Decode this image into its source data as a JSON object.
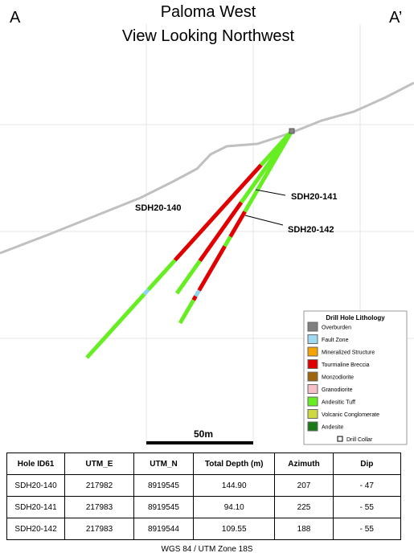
{
  "header": {
    "title_lines": [
      "Paloma West",
      "View Looking Northwest"
    ],
    "left_label": "A",
    "right_label": "A’"
  },
  "holes": [
    {
      "label": "SDH20-140"
    },
    {
      "label": "SDH20-141"
    },
    {
      "label": "SDH20-142"
    }
  ],
  "legend": {
    "title": "Drill Hole Lithology",
    "items": [
      "Overburden",
      "Fault Zone",
      "Mineralized Structure",
      "Tourmaline Breccia",
      "Monzodiorite",
      "Granodiorite",
      "Andesitic Tuff",
      "Volcanic Conglomerate",
      "Andesite"
    ],
    "collar": "Drill Collar"
  },
  "scale": {
    "label": "50m"
  },
  "table": {
    "header": [
      "Hole ID61",
      "UTM_E",
      "UTM_N",
      "Total Depth (m)",
      "Azimuth",
      "Dip"
    ],
    "rows": [
      [
        "SDH20-140",
        "217982",
        "8919545",
        "144.90",
        "207",
        "- 47"
      ],
      [
        "SDH20-141",
        "217983",
        "8919545",
        "94.10",
        "225",
        "- 55"
      ],
      [
        "SDH20-142",
        "217983",
        "8919544",
        "109.55",
        "188",
        "- 55"
      ]
    ]
  },
  "footer": "WGS 84 / UTM Zone 18S"
}
